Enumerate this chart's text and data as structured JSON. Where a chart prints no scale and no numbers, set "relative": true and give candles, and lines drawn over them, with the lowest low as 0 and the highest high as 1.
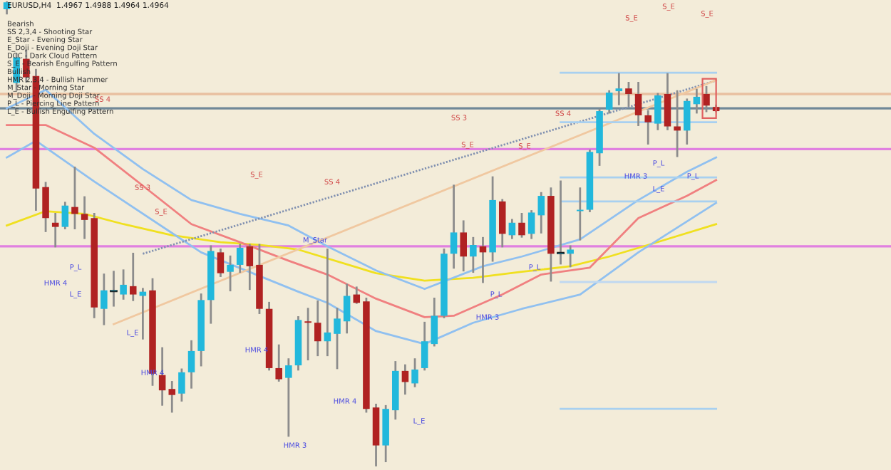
{
  "chart_data": {
    "type": "candlestick",
    "title": "EURUSD,H4  1.4967 1.4988 1.4964 1.4964",
    "relative": true,
    "categories": [
      null,
      null,
      null,
      null,
      null,
      null,
      null,
      null,
      null,
      null,
      null,
      null,
      null,
      null,
      null,
      null,
      null,
      null,
      null,
      null,
      null,
      null,
      null,
      null,
      null,
      null,
      null,
      null,
      null,
      null,
      null,
      null,
      null,
      null,
      null,
      null,
      null,
      null,
      null,
      null,
      null,
      null,
      null,
      null,
      null,
      null,
      null,
      null,
      null,
      null,
      null,
      null,
      null,
      null,
      null,
      null,
      null,
      null,
      null,
      null,
      null,
      null,
      null,
      null,
      null,
      null,
      null,
      null,
      null,
      null,
      null,
      null,
      null,
      null
    ],
    "ohlc": [
      [
        0.985,
        1.0,
        0.976,
        1.0
      ],
      [
        0.826,
        0.887,
        0.811,
        0.881
      ],
      [
        0.878,
        0.896,
        0.829,
        0.838
      ],
      [
        0.841,
        0.854,
        0.552,
        0.598
      ],
      [
        0.601,
        0.61,
        0.506,
        0.534
      ],
      [
        0.524,
        0.543,
        0.473,
        0.515
      ],
      [
        0.515,
        0.567,
        0.512,
        0.561
      ],
      [
        0.558,
        0.643,
        0.512,
        0.543
      ],
      [
        0.543,
        0.579,
        0.491,
        0.53
      ],
      [
        0.534,
        0.543,
        0.32,
        0.341
      ],
      [
        0.338,
        0.412,
        0.305,
        0.378
      ],
      [
        0.375,
        0.418,
        0.345,
        0.375
      ],
      [
        0.369,
        0.421,
        0.36,
        0.39
      ],
      [
        0.387,
        0.457,
        0.357,
        0.369
      ],
      [
        0.366,
        0.381,
        0.274,
        0.375
      ],
      [
        0.378,
        0.402,
        0.174,
        0.198
      ],
      [
        0.195,
        0.253,
        0.131,
        0.162
      ],
      [
        0.165,
        0.18,
        0.116,
        0.152
      ],
      [
        0.155,
        0.207,
        0.14,
        0.201
      ],
      [
        0.201,
        0.268,
        0.168,
        0.247
      ],
      [
        0.247,
        0.369,
        0.216,
        0.357
      ],
      [
        0.357,
        0.473,
        0.308,
        0.463
      ],
      [
        0.46,
        0.466,
        0.409,
        0.415
      ],
      [
        0.418,
        0.451,
        0.378,
        0.433
      ],
      [
        0.433,
        0.476,
        0.418,
        0.47
      ],
      [
        0.473,
        0.476,
        0.381,
        0.43
      ],
      [
        0.433,
        0.476,
        0.329,
        0.338
      ],
      [
        0.338,
        0.351,
        0.207,
        0.21
      ],
      [
        0.21,
        0.259,
        0.183,
        0.186
      ],
      [
        0.189,
        0.229,
        0.064,
        0.216
      ],
      [
        0.216,
        0.32,
        0.207,
        0.314
      ],
      [
        0.311,
        0.338,
        0.229,
        0.308
      ],
      [
        0.308,
        0.354,
        0.238,
        0.268
      ],
      [
        0.268,
        0.466,
        0.238,
        0.287
      ],
      [
        0.284,
        0.338,
        0.21,
        0.317
      ],
      [
        0.311,
        0.39,
        0.287,
        0.366
      ],
      [
        0.369,
        0.384,
        0.351,
        0.351
      ],
      [
        0.354,
        0.36,
        0.116,
        0.122
      ],
      [
        0.125,
        0.131,
        0.0,
        0.043
      ],
      [
        0.043,
        0.128,
        0.009,
        0.122
      ],
      [
        0.119,
        0.223,
        0.101,
        0.204
      ],
      [
        0.204,
        0.216,
        0.155,
        0.18
      ],
      [
        0.177,
        0.229,
        0.171,
        0.207
      ],
      [
        0.21,
        0.308,
        0.207,
        0.268
      ],
      [
        0.262,
        0.36,
        0.259,
        0.323
      ],
      [
        0.323,
        0.466,
        0.32,
        0.457
      ],
      [
        0.457,
        0.604,
        0.427,
        0.503
      ],
      [
        0.503,
        0.527,
        0.421,
        0.451
      ],
      [
        0.451,
        0.491,
        0.418,
        0.476
      ],
      [
        0.473,
        0.491,
        0.396,
        0.46
      ],
      [
        0.46,
        0.622,
        0.442,
        0.573
      ],
      [
        0.57,
        0.573,
        0.473,
        0.5
      ],
      [
        0.497,
        0.53,
        0.491,
        0.524
      ],
      [
        0.524,
        0.543,
        0.494,
        0.497
      ],
      [
        0.5,
        0.549,
        0.491,
        0.546
      ],
      [
        0.54,
        0.588,
        0.503,
        0.582
      ],
      [
        0.582,
        0.598,
        0.399,
        0.457
      ],
      [
        0.457,
        0.613,
        0.436,
        0.457
      ],
      [
        0.457,
        0.473,
        0.43,
        0.466
      ],
      [
        0.549,
        0.598,
        0.488,
        0.552
      ],
      [
        0.552,
        0.68,
        0.549,
        0.677
      ],
      [
        0.674,
        0.768,
        0.649,
        0.765
      ],
      [
        0.768,
        0.808,
        0.762,
        0.805
      ],
      [
        0.808,
        0.845,
        0.78,
        0.814
      ],
      [
        0.814,
        0.826,
        0.777,
        0.802
      ],
      [
        0.802,
        0.826,
        0.735,
        0.756
      ],
      [
        0.756,
        0.765,
        0.695,
        0.741
      ],
      [
        0.738,
        0.802,
        0.726,
        0.799
      ],
      [
        0.802,
        0.845,
        0.726,
        0.732
      ],
      [
        0.732,
        0.808,
        0.668,
        0.723
      ],
      [
        0.723,
        0.79,
        0.695,
        0.787
      ],
      [
        0.78,
        0.811,
        0.762,
        0.796
      ],
      [
        0.802,
        0.817,
        0.765,
        0.777
      ],
      [
        0.774,
        0.777,
        0.765,
        0.765
      ]
    ],
    "series": [
      {
        "type": "line",
        "color": "#f0e020",
        "values": [
          0.518,
          null,
          null,
          null,
          0.549,
          null,
          null,
          null,
          0.543,
          null,
          null,
          null,
          0.521,
          null,
          null,
          null,
          null,
          0.497,
          null,
          null,
          null,
          null,
          0.482,
          null,
          null,
          null,
          0.476,
          null,
          null,
          null,
          0.466,
          null,
          null,
          null,
          null,
          null,
          null,
          null,
          0.415,
          null,
          null,
          null,
          null,
          0.399,
          null,
          null,
          null,
          null,
          0.405,
          null,
          null,
          null,
          null,
          0.418,
          null,
          null,
          null,
          null,
          0.43,
          null,
          null,
          null,
          0.451,
          null,
          null,
          null,
          0.476,
          null,
          null,
          null,
          null,
          null,
          null,
          0.521
        ]
      },
      {
        "type": "line",
        "color": "#f08080",
        "values": [
          0.735,
          null,
          null,
          null,
          0.735,
          null,
          null,
          null,
          null,
          0.686,
          null,
          null,
          null,
          null,
          0.604,
          null,
          null,
          null,
          null,
          0.521,
          null,
          null,
          null,
          null,
          0.482,
          null,
          null,
          null,
          null,
          0.442,
          null,
          null,
          null,
          0.412,
          null,
          null,
          null,
          null,
          0.36,
          null,
          null,
          null,
          null,
          0.32,
          null,
          null,
          0.323,
          null,
          null,
          null,
          null,
          0.369,
          null,
          null,
          null,
          0.412,
          null,
          null,
          null,
          null,
          0.427,
          null,
          null,
          null,
          null,
          0.534,
          null,
          null,
          null,
          null,
          0.582,
          null,
          null,
          0.616
        ]
      },
      {
        "type": "line",
        "color": "#90c0f0",
        "values": [
          0.771,
          null,
          null,
          null,
          0.811,
          null,
          null,
          null,
          null,
          0.716,
          null,
          null,
          null,
          null,
          0.64,
          null,
          null,
          null,
          null,
          0.573,
          null,
          null,
          null,
          null,
          0.543,
          null,
          null,
          null,
          null,
          0.518,
          null,
          null,
          null,
          0.473,
          null,
          null,
          null,
          null,
          0.421,
          null,
          null,
          null,
          null,
          0.381,
          null,
          null,
          null,
          null,
          null,
          0.43,
          null,
          null,
          null,
          0.451,
          null,
          null,
          null,
          null,
          null,
          0.488,
          null,
          null,
          null,
          null,
          null,
          0.573,
          null,
          null,
          null,
          null,
          0.634,
          null,
          null,
          0.665
        ]
      },
      {
        "type": "line",
        "color": "#90c0f0",
        "values": [
          0.665,
          null,
          null,
          0.701,
          null,
          null,
          null,
          null,
          null,
          0.613,
          null,
          null,
          null,
          null,
          null,
          null,
          null,
          null,
          null,
          null,
          0.46,
          null,
          null,
          null,
          null,
          null,
          null,
          null,
          null,
          null,
          0.375,
          null,
          null,
          0.351,
          null,
          null,
          null,
          null,
          0.29,
          null,
          null,
          null,
          null,
          0.262,
          null,
          null,
          null,
          null,
          0.308,
          null,
          null,
          null,
          null,
          0.338,
          null,
          null,
          null,
          null,
          null,
          0.369,
          null,
          null,
          null,
          null,
          null,
          0.46,
          null,
          null,
          null,
          null,
          null,
          null,
          null,
          0.567
        ]
      },
      {
        "type": "line",
        "color": "#8090b0",
        "line_style": "dotted",
        "values": [
          null,
          null,
          null,
          null,
          null,
          null,
          null,
          null,
          null,
          null,
          null,
          null,
          null,
          null,
          0.457,
          null,
          null,
          null,
          null,
          null,
          null,
          null,
          null,
          null,
          null,
          null,
          null,
          null,
          null,
          null,
          null,
          null,
          null,
          null,
          null,
          null,
          null,
          null,
          null,
          null,
          null,
          null,
          null,
          null,
          null,
          null,
          null,
          null,
          null,
          null,
          null,
          null,
          null,
          null,
          null,
          null,
          null,
          null,
          null,
          null,
          null,
          null,
          null,
          null,
          null,
          null,
          null,
          null,
          null,
          null,
          null,
          null,
          null,
          0.831
        ]
      },
      {
        "type": "line",
        "color": "#f0c8a0",
        "values": [
          null,
          null,
          null,
          null,
          null,
          null,
          null,
          null,
          null,
          null,
          null,
          0.305,
          null,
          null,
          null,
          null,
          null,
          null,
          null,
          null,
          null,
          null,
          null,
          null,
          null,
          null,
          null,
          null,
          null,
          null,
          null,
          null,
          null,
          null,
          null,
          null,
          null,
          null,
          null,
          null,
          null,
          null,
          null,
          null,
          null,
          null,
          null,
          null,
          null,
          null,
          null,
          null,
          null,
          null,
          null,
          null,
          null,
          null,
          null,
          null,
          null,
          null,
          null,
          null,
          null,
          null,
          null,
          null,
          null,
          null,
          null,
          null,
          null,
          0.832
        ]
      },
      {
        "type": "line",
        "color": "#a8d0f0",
        "values": [
          null,
          null,
          null,
          null,
          null,
          null,
          null,
          null,
          null,
          null,
          null,
          null,
          null,
          null,
          null,
          null,
          null,
          null,
          null,
          null,
          null,
          null,
          null,
          null,
          null,
          null,
          null,
          null,
          null,
          null,
          null,
          null,
          null,
          null,
          null,
          null,
          null,
          null,
          null,
          null,
          null,
          null,
          null,
          null,
          null,
          null,
          null,
          null,
          null,
          null,
          null,
          null,
          null,
          null,
          null,
          null,
          null,
          0.848,
          null,
          null,
          null,
          null,
          null,
          null,
          null,
          null,
          null,
          null,
          null,
          null,
          null,
          null,
          null,
          0.848
        ]
      },
      {
        "type": "line",
        "color": "#a8d0f0",
        "values": [
          null,
          null,
          null,
          null,
          null,
          null,
          null,
          null,
          null,
          null,
          null,
          null,
          null,
          null,
          null,
          null,
          null,
          null,
          null,
          null,
          null,
          null,
          null,
          null,
          null,
          null,
          null,
          null,
          null,
          null,
          null,
          null,
          null,
          null,
          null,
          null,
          null,
          null,
          null,
          null,
          null,
          null,
          null,
          null,
          null,
          null,
          null,
          null,
          null,
          null,
          null,
          null,
          null,
          null,
          null,
          null,
          null,
          0.741,
          null,
          null,
          null,
          null,
          null,
          null,
          null,
          null,
          null,
          null,
          null,
          null,
          null,
          null,
          null,
          0.741
        ]
      },
      {
        "type": "line",
        "color": "#a8d0f0",
        "values": [
          null,
          null,
          null,
          null,
          null,
          null,
          null,
          null,
          null,
          null,
          null,
          null,
          null,
          null,
          null,
          null,
          null,
          null,
          null,
          null,
          null,
          null,
          null,
          null,
          null,
          null,
          null,
          null,
          null,
          null,
          null,
          null,
          null,
          null,
          null,
          null,
          null,
          null,
          null,
          null,
          null,
          null,
          null,
          null,
          null,
          null,
          null,
          null,
          null,
          null,
          null,
          null,
          null,
          null,
          null,
          null,
          null,
          0.622,
          null,
          null,
          null,
          null,
          null,
          null,
          null,
          null,
          null,
          null,
          null,
          null,
          null,
          null,
          null,
          0.622
        ]
      },
      {
        "type": "line",
        "color": "#a8d0f0",
        "values": [
          null,
          null,
          null,
          null,
          null,
          null,
          null,
          null,
          null,
          null,
          null,
          null,
          null,
          null,
          null,
          null,
          null,
          null,
          null,
          null,
          null,
          null,
          null,
          null,
          null,
          null,
          null,
          null,
          null,
          null,
          null,
          null,
          null,
          null,
          null,
          null,
          null,
          null,
          null,
          null,
          null,
          null,
          null,
          null,
          null,
          null,
          null,
          null,
          null,
          null,
          null,
          null,
          null,
          null,
          null,
          null,
          null,
          0.57,
          null,
          null,
          null,
          null,
          null,
          null,
          null,
          null,
          null,
          null,
          null,
          null,
          null,
          null,
          null,
          0.57
        ]
      },
      {
        "type": "line",
        "color": "#c0d8f0",
        "values": [
          null,
          null,
          null,
          null,
          null,
          null,
          null,
          null,
          null,
          null,
          null,
          null,
          null,
          null,
          null,
          null,
          null,
          null,
          null,
          null,
          null,
          null,
          null,
          null,
          null,
          null,
          null,
          null,
          null,
          null,
          null,
          null,
          null,
          null,
          null,
          null,
          null,
          null,
          null,
          null,
          null,
          null,
          null,
          null,
          null,
          null,
          null,
          null,
          null,
          null,
          null,
          null,
          null,
          null,
          null,
          null,
          null,
          0.396,
          null,
          null,
          null,
          null,
          null,
          null,
          null,
          null,
          null,
          null,
          null,
          null,
          null,
          null,
          null,
          0.396
        ]
      },
      {
        "type": "line",
        "color": "#a8d0f0",
        "values": [
          null,
          null,
          null,
          null,
          null,
          null,
          null,
          null,
          null,
          null,
          null,
          null,
          null,
          null,
          null,
          null,
          null,
          null,
          null,
          null,
          null,
          null,
          null,
          null,
          null,
          null,
          null,
          null,
          null,
          null,
          null,
          null,
          null,
          null,
          null,
          null,
          null,
          null,
          null,
          null,
          null,
          null,
          null,
          null,
          null,
          null,
          null,
          null,
          null,
          null,
          null,
          null,
          null,
          null,
          null,
          null,
          null,
          0.122,
          null,
          null,
          null,
          null,
          null,
          null,
          null,
          null,
          null,
          null,
          null,
          null,
          null,
          null,
          null,
          0.122
        ]
      }
    ],
    "ref_lines": [
      {
        "axis": "y",
        "value": 0.802,
        "color": "#e8c0a0"
      },
      {
        "axis": "y",
        "value": 0.771,
        "color": "#708898"
      },
      {
        "axis": "y",
        "value": 0.683,
        "color": "#e080e0"
      },
      {
        "axis": "y",
        "value": 0.473,
        "color": "#e080e0"
      }
    ],
    "annotations": [
      "Bearish",
      "SS 2,3,4 - Shooting Star",
      "E_Star - Evening Star",
      "E_Doji - Evening Doji Star",
      "DCC - Dark Cloud Pattern",
      "S_E - Bearish Engulfing Pattern",
      "Bullish",
      "HMR 2,3,4 - Bullish Hammer",
      "M_Star - Morning Star",
      "M_Doji - Morning Doji Star",
      "P_L - Piercing Line Pattern",
      "L_E - Bullish Engulfing Pattern",
      "SS 4",
      "SS 3",
      "S_E",
      "S_E",
      "SS 4",
      "SS 3",
      "S_E",
      "S_E",
      "SS 4",
      "S_E",
      "S_E",
      "S_E",
      "P_L",
      "HMR 4",
      "L_E",
      "L_E",
      "HMR 4",
      "HMR 4",
      "HMR 3",
      "M_Star",
      "HMR 4",
      "L_E",
      "P_L",
      "P_L",
      "HMR 3",
      "P_L",
      "HMR 3",
      "P_L",
      "L_E"
    ]
  }
}
